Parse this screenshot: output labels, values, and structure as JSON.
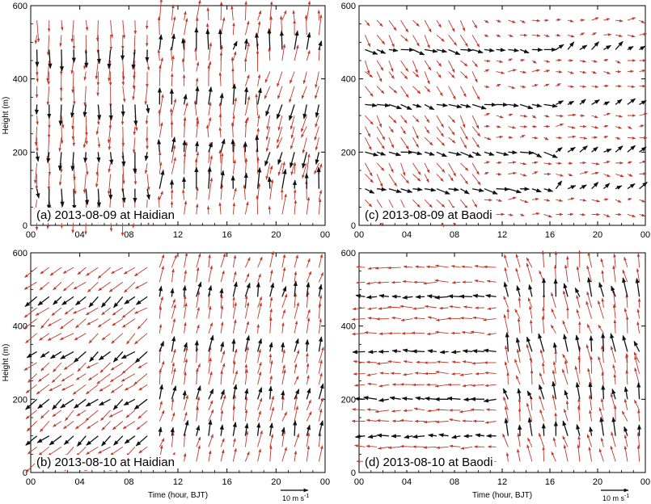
{
  "chart_data": {
    "type": "vector-field",
    "xlabel": "Time (hour, BJT)",
    "ylabel": "Height (m)",
    "xlim": [
      0,
      24
    ],
    "ylim": [
      0,
      600
    ],
    "xtick_labels": [
      "00",
      "04",
      "08",
      "12",
      "16",
      "20",
      "00"
    ],
    "ytick_labels": [
      "0",
      "200",
      "400",
      "600"
    ],
    "scale_arrow_label": "10 m s",
    "scale_arrow_label_sup": "-1",
    "colors": {
      "black_vectors": "#111111",
      "red_vectors": "#c0392b"
    },
    "panels": [
      {
        "id": "a",
        "label": "(a) 2013-08-09 at Haidian"
      },
      {
        "id": "c",
        "label": "(c) 2013-08-09 at Baodi"
      },
      {
        "id": "b",
        "label": "(b) 2013-08-10 at Haidian"
      },
      {
        "id": "d",
        "label": "(d) 2013-08-10 at Baodi"
      }
    ]
  }
}
